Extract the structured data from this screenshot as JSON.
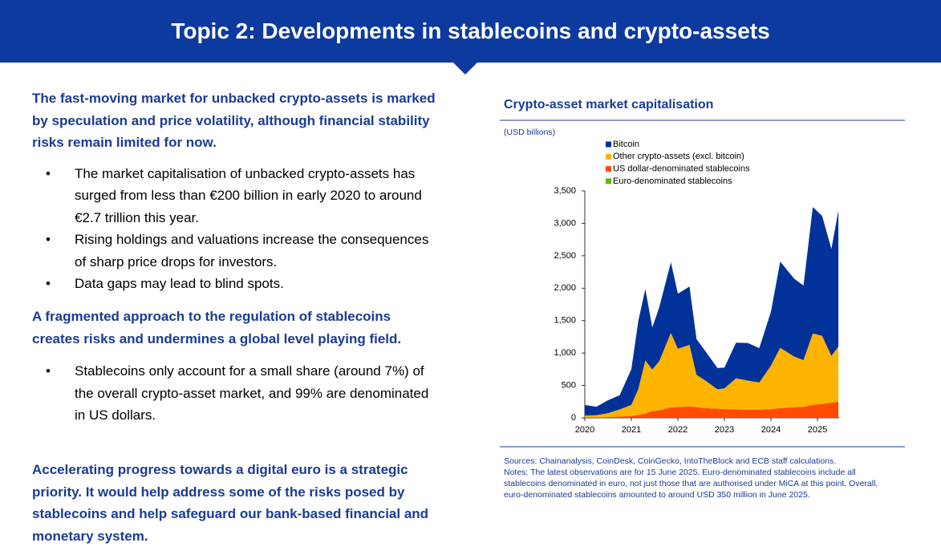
{
  "header": {
    "title": "Topic 2: Developments in stablecoins and crypto-assets"
  },
  "sections": [
    {
      "heading": "The fast-moving market for unbacked crypto-assets is marked by speculation and price volatility, although financial stability risks remain limited for now.",
      "bullets": [
        "The market capitalisation of unbacked crypto-assets has surged from less than €200 billion in early 2020 to around €2.7 trillion this year.",
        "Rising holdings and valuations increase the consequences of sharp price drops for investors.",
        "Data gaps may lead to blind spots."
      ]
    },
    {
      "heading": "A fragmented approach to the regulation of stablecoins creates risks and undermines a global level playing field.",
      "bullets": [
        "Stablecoins only account for a small share (around 7%) of the overall crypto-asset market, and 99% are denominated in US dollars."
      ]
    },
    {
      "heading": "Accelerating progress towards a digital euro is a strategic priority. It would help address some of the risks posed by stablecoins and help safeguard our bank-based financial and monetary system."
    }
  ],
  "chart_data": {
    "type": "area",
    "stacked": true,
    "title": "Crypto-asset market capitalisation",
    "y_label": "(USD billions)",
    "x": [
      2020.0,
      2020.25,
      2020.5,
      2020.75,
      2021.0,
      2021.15,
      2021.3,
      2021.45,
      2021.6,
      2021.85,
      2022.0,
      2022.25,
      2022.4,
      2022.6,
      2022.85,
      2023.0,
      2023.25,
      2023.5,
      2023.75,
      2024.0,
      2024.2,
      2024.5,
      2024.7,
      2024.9,
      2025.1,
      2025.3,
      2025.45
    ],
    "series": [
      {
        "name": "Bitcoin",
        "color": "#003299",
        "values": [
          165,
          130,
          200,
          220,
          550,
          1050,
          1100,
          650,
          830,
          1090,
          850,
          900,
          550,
          450,
          330,
          320,
          550,
          580,
          530,
          830,
          1330,
          1200,
          1150,
          1950,
          1850,
          1650,
          2100
        ]
      },
      {
        "name": "Other crypto-assets (excl. bitcoin)",
        "color": "#ffb400",
        "values": [
          30,
          35,
          60,
          110,
          170,
          400,
          820,
          640,
          760,
          1150,
          900,
          950,
          500,
          420,
          300,
          320,
          480,
          450,
          420,
          670,
          930,
          780,
          720,
          1100,
          1050,
          720,
          850
        ]
      },
      {
        "name": "US dollar-denominated stablecoins",
        "color": "#ff4b00",
        "values": [
          5,
          6,
          12,
          20,
          30,
          45,
          65,
          105,
          115,
          160,
          165,
          175,
          165,
          150,
          140,
          135,
          130,
          125,
          125,
          135,
          150,
          165,
          170,
          200,
          215,
          235,
          250
        ]
      },
      {
        "name": "Euro-denominated stablecoins",
        "color": "#65b800",
        "values": [
          0.1,
          0.1,
          0.1,
          0.1,
          0.1,
          0.1,
          0.1,
          0.1,
          0.1,
          0.1,
          0.1,
          0.1,
          0.2,
          0.2,
          0.2,
          0.2,
          0.2,
          0.2,
          0.2,
          0.2,
          0.2,
          0.2,
          0.2,
          0.2,
          0.3,
          0.33,
          0.35
        ]
      }
    ],
    "xlim": [
      2020,
      2025.47
    ],
    "ylim": [
      0,
      3500
    ],
    "xticks": [
      2020,
      2021,
      2022,
      2023,
      2024,
      2025
    ],
    "yticks": [
      0,
      500,
      {
        "value": 1000,
        "label": "1,000"
      },
      {
        "value": 1500,
        "label": "1,500"
      },
      {
        "value": 2000,
        "label": "2,000"
      },
      {
        "value": 2500,
        "label": "2,500"
      },
      {
        "value": 3000,
        "label": "3,000"
      },
      {
        "value": 3500,
        "label": "3,500"
      }
    ],
    "sources": "Sources: Chainanalysis, CoinDesk, CoinGecko, IntoTheBlock and ECB staff calculations.",
    "notes": "Notes: The latest observations are for 15 June 2025. Euro-denominated stablecoins include all stablecoins denominated in euro, not just those that are authorised under MiCA at this point. Overall, euro-denominated stablecoins amounted to around USD 350 million in June 2025."
  }
}
